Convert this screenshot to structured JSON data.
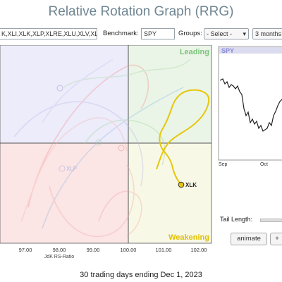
{
  "title": "Relative Rotation Graph (RRG)",
  "toolbar": {
    "symbols_value": "K,XLI,XLK,XLP,XLRE,XLU,XLV,XLY",
    "benchmark_label": "Benchmark:",
    "benchmark_value": "SPY",
    "groups_label": "Groups:",
    "groups_value": "- Select -",
    "period_value": "3 months"
  },
  "chart": {
    "quadrants": {
      "leading": "Leading",
      "weakening": "Weakening"
    },
    "quadrant_colors": {
      "leading": "#eaf5e7",
      "weakening": "#f8f8e6",
      "lagging": "#fbe5e5",
      "improving": "#ececfa"
    },
    "xaxis_title": "JdK RS-Ratio",
    "xticks": [
      "97.00",
      "98.00",
      "99.00",
      "100.00",
      "101.00",
      "102.00"
    ],
    "highlight_label": "XLK",
    "highlight_color": "#e6c60c"
  },
  "benchmark_panel": {
    "label": "SPY",
    "months": [
      "Sep",
      "Oct"
    ]
  },
  "controls": {
    "tail_length_label": "Tail Length:",
    "animate_label": "animate",
    "extra_label": "+"
  },
  "footer": "30 trading days ending Dec 1, 2023"
}
